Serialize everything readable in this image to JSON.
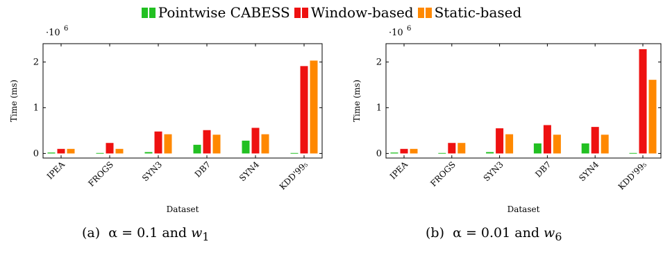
{
  "legend": [
    {
      "name": "Pointwise CABESS",
      "color": "#22c022"
    },
    {
      "name": "Window-based",
      "color": "#ee1111"
    },
    {
      "name": "Static-based",
      "color": "#ff8800"
    }
  ],
  "chart_data": [
    {
      "type": "bar",
      "categories": [
        "IPEA",
        "FROGS",
        "SYN3",
        "DB7",
        "SYN4",
        "KDD'99₅"
      ],
      "series": [
        {
          "name": "Pointwise CABESS",
          "values": [
            0.02,
            0.01,
            0.03,
            0.19,
            0.28,
            0.01
          ]
        },
        {
          "name": "Window-based",
          "values": [
            0.1,
            0.23,
            0.48,
            0.51,
            0.56,
            1.91
          ]
        },
        {
          "name": "Static-based",
          "values": [
            0.1,
            0.1,
            0.42,
            0.41,
            0.42,
            2.03
          ]
        }
      ],
      "xlabel": "Dataset",
      "ylabel": "Time (ms)",
      "yticks": [
        "0",
        "1",
        "2"
      ],
      "ylim": [
        -0.1,
        2.4
      ],
      "scale_label": "·10",
      "scale_exp": "6",
      "grid": false
    },
    {
      "type": "bar",
      "categories": [
        "IPEA",
        "FROGS",
        "SYN3",
        "DB7",
        "SYN4",
        "KDD'99₅"
      ],
      "series": [
        {
          "name": "Pointwise CABESS",
          "values": [
            0.02,
            0.01,
            0.03,
            0.22,
            0.22,
            0.01
          ]
        },
        {
          "name": "Window-based",
          "values": [
            0.1,
            0.23,
            0.55,
            0.62,
            0.58,
            2.28
          ]
        },
        {
          "name": "Static-based",
          "values": [
            0.1,
            0.23,
            0.42,
            0.41,
            0.41,
            1.61
          ]
        }
      ],
      "xlabel": "Dataset",
      "ylabel": "Time (ms)",
      "yticks": [
        "0",
        "1",
        "2"
      ],
      "ylim": [
        -0.1,
        2.4
      ],
      "scale_label": "·10",
      "scale_exp": "6",
      "grid": false
    }
  ],
  "captions": [
    {
      "label": "(a)",
      "alpha_text": "α = 0.1 and ",
      "w": "w",
      "sub": "1"
    },
    {
      "label": "(b)",
      "alpha_text": "α = 0.01 and ",
      "w": "w",
      "sub": "6"
    }
  ]
}
